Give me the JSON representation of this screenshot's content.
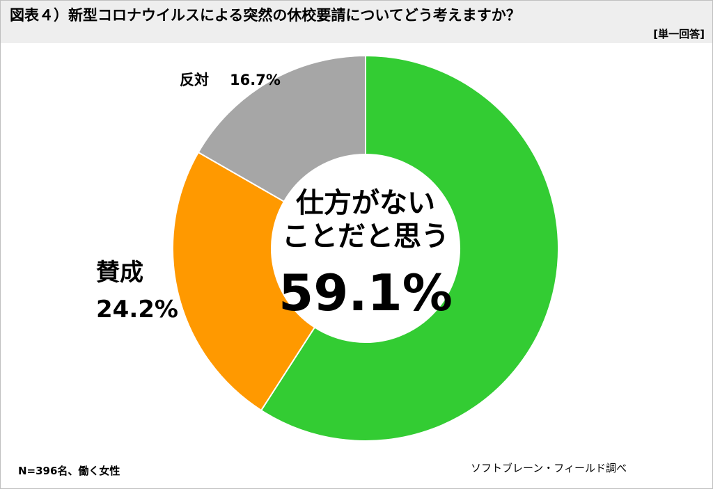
{
  "chart_data": {
    "type": "donut",
    "title": "図表４）新型コロナウイルスによる突然の休校要請についてどう考えますか？",
    "subtitle": "[単一回答]",
    "categories": [
      "仕方がない\nことだと思う",
      "賛成",
      "反対"
    ],
    "values": [
      59.1,
      24.2,
      16.7
    ],
    "value_labels": [
      "59.1%",
      "24.2%",
      "16.7%"
    ],
    "colors": [
      "#33cc33",
      "#ff9900",
      "#a6a6a6"
    ],
    "note": "N=396名、働く女性",
    "source": "ソフトブレーン・フィールド調べ"
  }
}
